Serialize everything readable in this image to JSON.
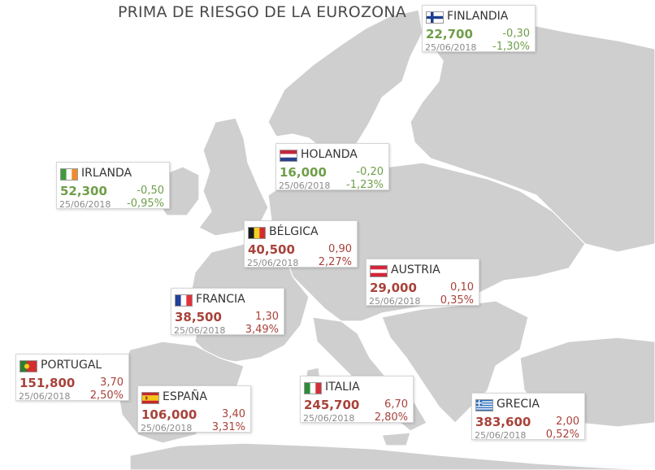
{
  "title": "PRIMA DE RIESGO DE LA EUROZONA",
  "colors": {
    "up": "#a8423a",
    "down": "#6f9e4a",
    "land": "#cfcfcf",
    "sea": "#ffffff"
  },
  "countries": [
    {
      "id": "finlandia",
      "name": "FINLANDIA",
      "value": "22,700",
      "change": "-0,30",
      "date": "25/06/2018",
      "pct": "-1,30%",
      "trend": "down",
      "flag": "finland-flag"
    },
    {
      "id": "irlanda",
      "name": "IRLANDA",
      "value": "52,300",
      "change": "-0,50",
      "date": "25/06/2018",
      "pct": "-0,95%",
      "trend": "down",
      "flag": "ireland-flag"
    },
    {
      "id": "holanda",
      "name": "HOLANDA",
      "value": "16,000",
      "change": "-0,20",
      "date": "25/06/2018",
      "pct": "-1,23%",
      "trend": "down",
      "flag": "netherlands-flag"
    },
    {
      "id": "belgica",
      "name": "BÉLGICA",
      "value": "40,500",
      "change": "0,90",
      "date": "25/06/2018",
      "pct": "2,27%",
      "trend": "up",
      "flag": "belgium-flag"
    },
    {
      "id": "austria",
      "name": "AUSTRIA",
      "value": "29,000",
      "change": "0,10",
      "date": "25/06/2018",
      "pct": "0,35%",
      "trend": "up",
      "flag": "austria-flag"
    },
    {
      "id": "francia",
      "name": "FRANCIA",
      "value": "38,500",
      "change": "1,30",
      "date": "25/06/2018",
      "pct": "3,49%",
      "trend": "up",
      "flag": "france-flag"
    },
    {
      "id": "portugal",
      "name": "PORTUGAL",
      "value": "151,800",
      "change": "3,70",
      "date": "25/06/2018",
      "pct": "2,50%",
      "trend": "up",
      "flag": "portugal-flag"
    },
    {
      "id": "espana",
      "name": "ESPAÑA",
      "value": "106,000",
      "change": "3,40",
      "date": "25/06/2018",
      "pct": "3,31%",
      "trend": "up",
      "flag": "spain-flag"
    },
    {
      "id": "italia",
      "name": "ITALIA",
      "value": "245,700",
      "change": "6,70",
      "date": "25/06/2018",
      "pct": "2,80%",
      "trend": "up",
      "flag": "italy-flag"
    },
    {
      "id": "grecia",
      "name": "GRECIA",
      "value": "383,600",
      "change": "2,00",
      "date": "25/06/2018",
      "pct": "0,52%",
      "trend": "up",
      "flag": "greece-flag"
    }
  ]
}
